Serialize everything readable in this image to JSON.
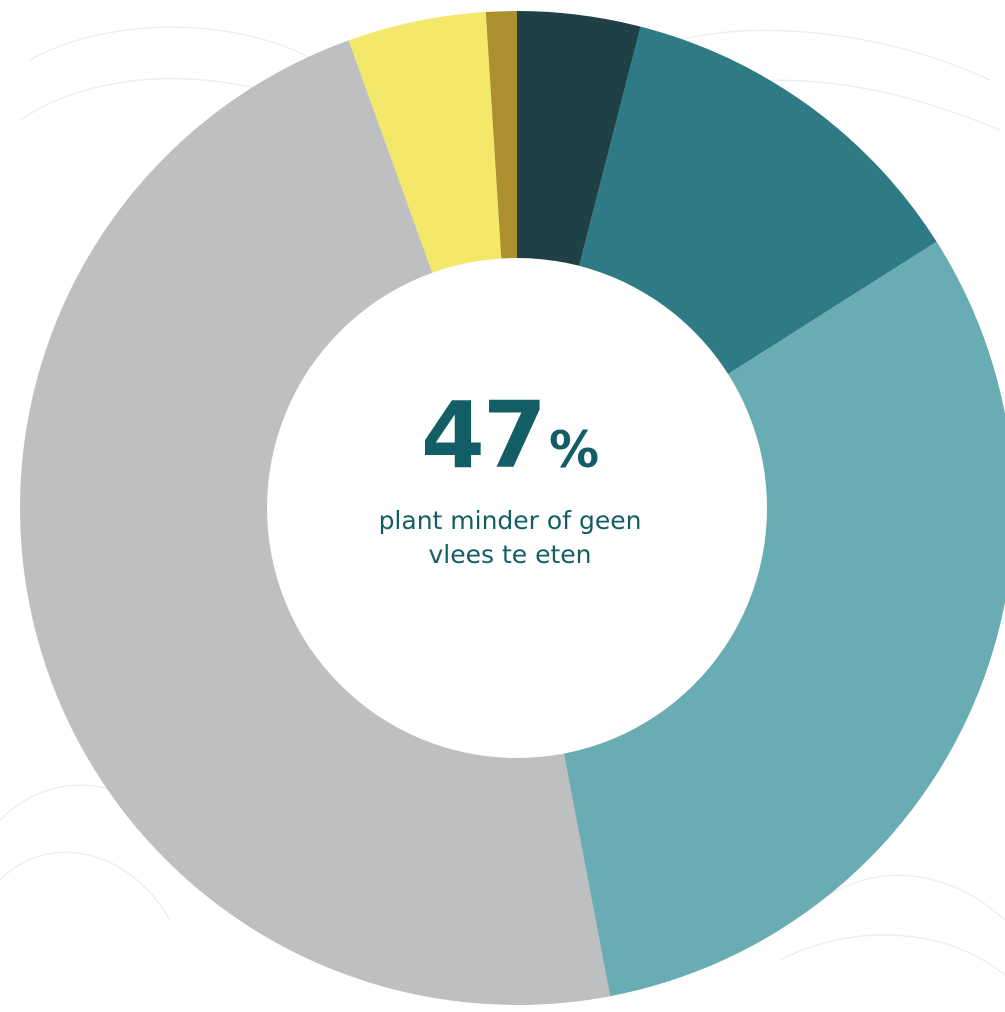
{
  "center": {
    "value": "47",
    "unit": "%",
    "caption_line1": "plant minder of geen",
    "caption_line2": "vlees te eten"
  },
  "chart_data": {
    "type": "donut",
    "title": "",
    "unit": "%",
    "start_angle_deg": 0,
    "direction": "clockwise",
    "slices": [
      {
        "value": 4,
        "color": "#1e4046"
      },
      {
        "value": 12,
        "color": "#2e7a85"
      },
      {
        "value": 31,
        "color": "#69acb3"
      },
      {
        "value": 47.5,
        "color": "#bebfc1"
      },
      {
        "value": 4.5,
        "color": "#f3e86a"
      },
      {
        "value": 1,
        "color": "#ad8f2e"
      }
    ]
  }
}
